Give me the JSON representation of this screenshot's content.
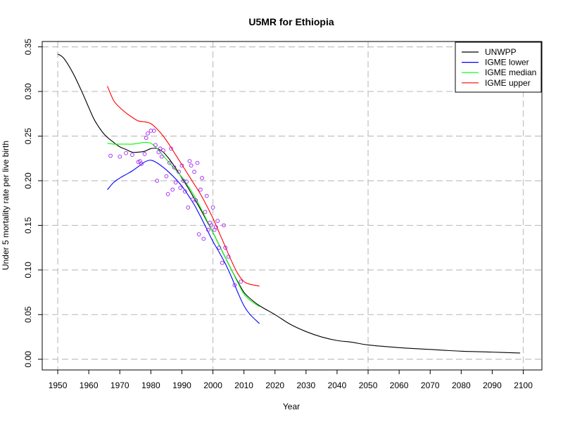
{
  "chart_data": {
    "type": "line",
    "title": "U5MR for Ethiopia",
    "xlabel": "Year",
    "ylabel": "Under 5 mortality rate per live birth",
    "xlim": [
      1945,
      2106
    ],
    "ylim": [
      -0.012,
      0.356
    ],
    "x_ticks": [
      1950,
      1960,
      1970,
      1980,
      1990,
      2000,
      2010,
      2020,
      2030,
      2040,
      2050,
      2060,
      2070,
      2080,
      2090,
      2100
    ],
    "y_ticks": [
      0.0,
      0.05,
      0.1,
      0.15,
      0.2,
      0.25,
      0.3,
      0.35
    ],
    "y_tick_labels": [
      "0.00",
      "0.05",
      "0.10",
      "0.15",
      "0.20",
      "0.25",
      "0.30",
      "0.35"
    ],
    "grid": true,
    "legend_position": "top-right",
    "series": [
      {
        "name": "UNWPP",
        "color": "#000000",
        "x": [
          1950,
          1952,
          1955,
          1958,
          1960,
          1962,
          1965,
          1968,
          1970,
          1972,
          1974,
          1976,
          1978,
          1980,
          1982,
          1984,
          1986,
          1988,
          1990,
          1992,
          1994,
          1996,
          1998,
          2000,
          2002,
          2004,
          2006,
          2008,
          2010,
          2012,
          2015,
          2020,
          2025,
          2030,
          2035,
          2040,
          2045,
          2050,
          2060,
          2070,
          2080,
          2090,
          2099
        ],
        "y": [
          0.342,
          0.337,
          0.32,
          0.298,
          0.282,
          0.267,
          0.252,
          0.243,
          0.238,
          0.235,
          0.232,
          0.232,
          0.233,
          0.236,
          0.236,
          0.232,
          0.224,
          0.214,
          0.203,
          0.192,
          0.18,
          0.168,
          0.155,
          0.142,
          0.128,
          0.114,
          0.1,
          0.087,
          0.075,
          0.068,
          0.06,
          0.05,
          0.039,
          0.031,
          0.025,
          0.021,
          0.019,
          0.016,
          0.013,
          0.011,
          0.009,
          0.008,
          0.007
        ]
      },
      {
        "name": "IGME lower",
        "color": "#0000ff",
        "x": [
          1966,
          1968,
          1970,
          1972,
          1974,
          1976,
          1978,
          1980,
          1982,
          1984,
          1986,
          1988,
          1990,
          1992,
          1994,
          1996,
          1998,
          2000,
          2002,
          2004,
          2006,
          2008,
          2010,
          2012,
          2015
        ],
        "y": [
          0.19,
          0.198,
          0.203,
          0.207,
          0.211,
          0.216,
          0.221,
          0.223,
          0.22,
          0.215,
          0.209,
          0.202,
          0.194,
          0.184,
          0.173,
          0.16,
          0.146,
          0.132,
          0.12,
          0.107,
          0.092,
          0.075,
          0.06,
          0.05,
          0.04
        ]
      },
      {
        "name": "IGME median",
        "color": "#00ff00",
        "x": [
          1966,
          1968,
          1970,
          1972,
          1974,
          1976,
          1978,
          1980,
          1982,
          1984,
          1986,
          1988,
          1990,
          1992,
          1994,
          1996,
          1998,
          2000,
          2002,
          2004,
          2006,
          2008,
          2010,
          2012,
          2015
        ],
        "y": [
          0.242,
          0.241,
          0.241,
          0.241,
          0.241,
          0.242,
          0.243,
          0.242,
          0.236,
          0.228,
          0.22,
          0.212,
          0.204,
          0.194,
          0.183,
          0.17,
          0.156,
          0.142,
          0.128,
          0.114,
          0.1,
          0.086,
          0.073,
          0.066,
          0.059
        ]
      },
      {
        "name": "IGME upper",
        "color": "#ff0000",
        "x": [
          1966,
          1968,
          1970,
          1972,
          1974,
          1976,
          1978,
          1980,
          1982,
          1984,
          1986,
          1988,
          1990,
          1992,
          1994,
          1996,
          1998,
          2000,
          2002,
          2004,
          2006,
          2008,
          2010,
          2012,
          2015
        ],
        "y": [
          0.306,
          0.29,
          0.282,
          0.276,
          0.271,
          0.267,
          0.266,
          0.264,
          0.258,
          0.25,
          0.24,
          0.229,
          0.218,
          0.207,
          0.196,
          0.185,
          0.172,
          0.158,
          0.142,
          0.126,
          0.11,
          0.096,
          0.087,
          0.084,
          0.082
        ]
      }
    ],
    "points": {
      "color": "#a020f0",
      "x": [
        1967,
        1970,
        1972,
        1974,
        1976,
        1976.5,
        1977,
        1978,
        1978.5,
        1979,
        1980,
        1981,
        1981.5,
        1982,
        1982.5,
        1983,
        1983.5,
        1984,
        1985,
        1985.5,
        1986,
        1986.5,
        1987,
        1987.5,
        1988,
        1989,
        1989.5,
        1990,
        1990.5,
        1991,
        1991.5,
        1992,
        1992.5,
        1993,
        1993.5,
        1994,
        1994.5,
        1995,
        1995.5,
        1996,
        1996.5,
        1997,
        1997.5,
        1998,
        1998.5,
        1999,
        1999.5,
        2000,
        2000.5,
        2001,
        2001.5,
        2002,
        2003,
        2003.5,
        2004,
        2005,
        2007,
        2009
      ],
      "y": [
        0.228,
        0.227,
        0.231,
        0.229,
        0.221,
        0.222,
        0.219,
        0.23,
        0.248,
        0.253,
        0.256,
        0.256,
        0.24,
        0.2,
        0.232,
        0.236,
        0.227,
        0.234,
        0.205,
        0.185,
        0.22,
        0.236,
        0.19,
        0.215,
        0.198,
        0.21,
        0.192,
        0.217,
        0.2,
        0.188,
        0.199,
        0.17,
        0.222,
        0.217,
        0.179,
        0.21,
        0.178,
        0.22,
        0.14,
        0.19,
        0.203,
        0.135,
        0.165,
        0.183,
        0.145,
        0.153,
        0.15,
        0.17,
        0.145,
        0.148,
        0.155,
        0.125,
        0.108,
        0.15,
        0.125,
        0.115,
        0.083,
        0.087
      ]
    }
  }
}
